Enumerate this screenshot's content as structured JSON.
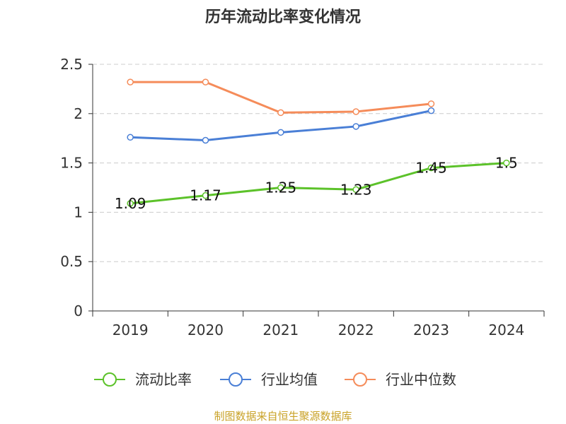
{
  "title": "历年流动比率变化情况",
  "source": "制图数据来自恒生聚源数据库",
  "chart_data": {
    "type": "line",
    "title": "历年流动比率变化情况",
    "categories": [
      "2019",
      "2020",
      "2021",
      "2022",
      "2023",
      "2024"
    ],
    "ylim": [
      0,
      2.5
    ],
    "yticks": [
      "0",
      "0.5",
      "1",
      "1.5",
      "2",
      "2.5"
    ],
    "grid": true,
    "legend_position": "bottom",
    "series": [
      {
        "name": "流动比率",
        "color": "#5cc22a",
        "values": [
          1.09,
          1.17,
          1.25,
          1.23,
          1.45,
          1.5
        ],
        "labels": [
          "1.09",
          "1.17",
          "1.25",
          "1.23",
          "1.45",
          "1.5"
        ]
      },
      {
        "name": "行业均值",
        "color": "#4a7fd6",
        "values": [
          1.76,
          1.73,
          1.81,
          1.87,
          2.03,
          null
        ]
      },
      {
        "name": "行业中位数",
        "color": "#f58c5a",
        "values": [
          2.32,
          2.32,
          2.01,
          2.02,
          2.1,
          null
        ]
      }
    ]
  }
}
